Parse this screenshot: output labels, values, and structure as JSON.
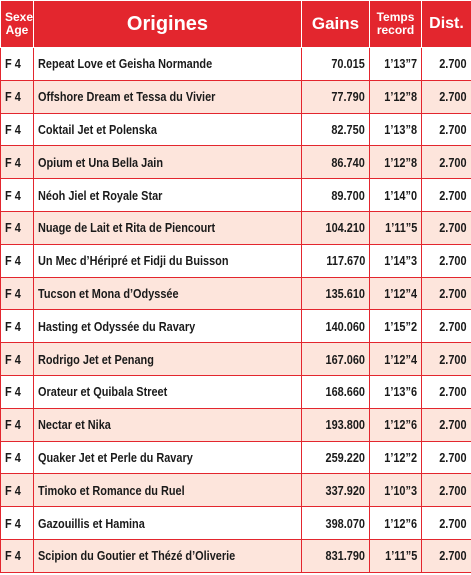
{
  "table": {
    "header": {
      "sex_age": [
        "Sexe",
        "Age"
      ],
      "origins": "Origines",
      "gains": "Gains",
      "record": [
        "Temps",
        "record"
      ],
      "dist": "Dist."
    },
    "rows": [
      [
        "F 4",
        "Repeat Love et Geisha Normande",
        "70.015",
        "1’13”7",
        "2.700"
      ],
      [
        "F 4",
        "Offshore Dream et Tessa du Vivier",
        "77.790",
        "1’12”8",
        "2.700"
      ],
      [
        "F 4",
        "Coktail Jet et Polenska",
        "82.750",
        "1’13”8",
        "2.700"
      ],
      [
        "F 4",
        "Opium et Una Bella Jain",
        "86.740",
        "1’12”8",
        "2.700"
      ],
      [
        "F 4",
        "Néoh Jiel et Royale Star",
        "89.700",
        "1’14”0",
        "2.700"
      ],
      [
        "F 4",
        "Nuage de Lait et Rita de Piencourt",
        "104.210",
        "1’11”5",
        "2.700"
      ],
      [
        "F 4",
        "Un Mec d’Héripré et Fidji du Buisson",
        "117.670",
        "1’14”3",
        "2.700"
      ],
      [
        "F 4",
        "Tucson et Mona d’Odyssée",
        "135.610",
        "1’12”4",
        "2.700"
      ],
      [
        "F 4",
        "Hasting et Odyssée du Ravary",
        "140.060",
        "1’15”2",
        "2.700"
      ],
      [
        "F 4",
        "Rodrigo Jet et Penang",
        "167.060",
        "1’12”4",
        "2.700"
      ],
      [
        "F 4",
        "Orateur et Quibala Street",
        "168.660",
        "1’13”6",
        "2.700"
      ],
      [
        "F 4",
        "Nectar et Nika",
        "193.800",
        "1’12”6",
        "2.700"
      ],
      [
        "F 4",
        "Quaker Jet et Perle du Ravary",
        "259.220",
        "1’12”2",
        "2.700"
      ],
      [
        "F 4",
        "Timoko et Romance du Ruel",
        "337.920",
        "1’10”3",
        "2.700"
      ],
      [
        "F 4",
        "Gazouillis et Hamina",
        "398.070",
        "1’12”6",
        "2.700"
      ],
      [
        "F 4",
        "Scipion du Goutier et Thézé d’Oliverie",
        "831.790",
        "1’11”5",
        "2.700"
      ]
    ]
  }
}
